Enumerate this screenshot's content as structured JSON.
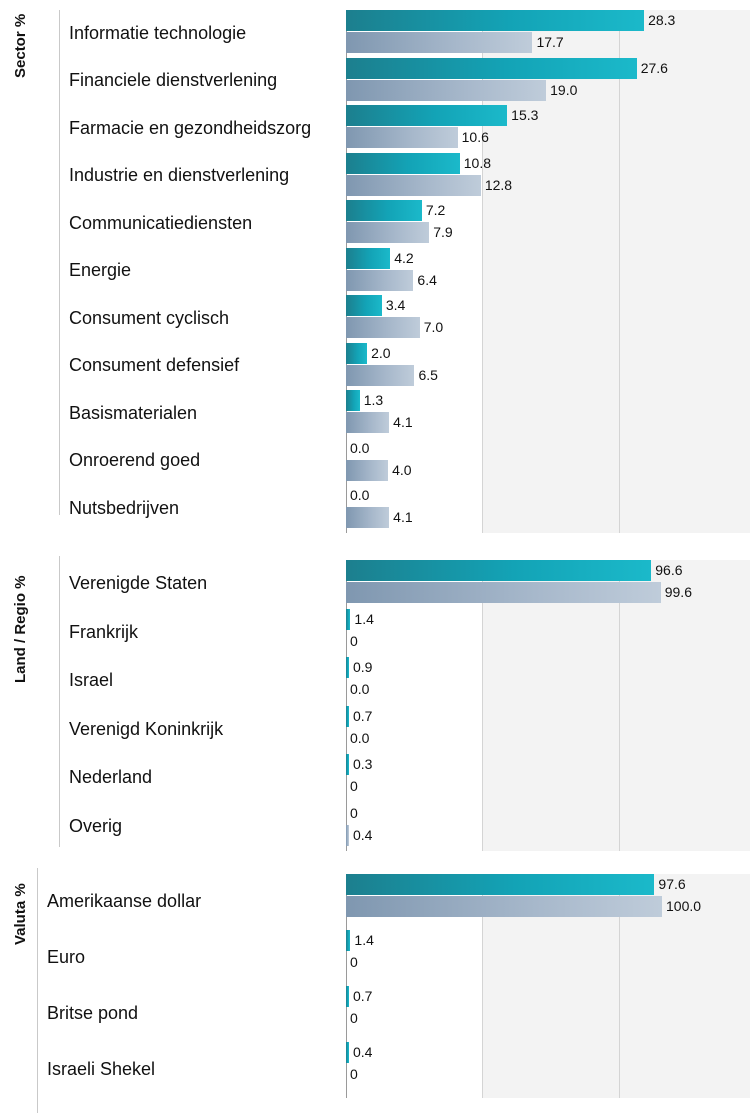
{
  "chart_data": [
    {
      "type": "bar",
      "orientation": "horizontal",
      "title": "Sector %",
      "categories": [
        "Informatie technologie",
        "Financiele dienstverlening",
        "Farmacie en gezondheidszorg",
        "Industrie en dienstverlening",
        "Communicatiediensten",
        "Energie",
        "Consument cyclisch",
        "Consument defensief",
        "Basismaterialen",
        "Onroerend goed",
        "Nutsbedrijven"
      ],
      "series": [
        {
          "values": [
            28.3,
            27.6,
            15.3,
            10.8,
            7.2,
            4.2,
            3.4,
            2.0,
            1.3,
            0.0,
            0.0
          ],
          "labels": [
            "28.3",
            "27.6",
            "15.3",
            "10.8",
            "7.2",
            "4.2",
            "3.4",
            "2.0",
            "1.3",
            "0.0",
            "0.0"
          ],
          "color": "#13a3b6"
        },
        {
          "values": [
            17.7,
            19.0,
            10.6,
            12.8,
            7.9,
            6.4,
            7.0,
            6.5,
            4.1,
            4.0,
            4.1
          ],
          "labels": [
            "17.7",
            "19.0",
            "10.6",
            "12.8",
            "7.9",
            "6.4",
            "7.0",
            "6.5",
            "4.1",
            "4.0",
            "4.1"
          ],
          "color": "#a7b8cb"
        }
      ],
      "xlim": [
        0,
        30
      ]
    },
    {
      "type": "bar",
      "orientation": "horizontal",
      "title": "Land / Regio %",
      "categories": [
        "Verenigde Staten",
        "Frankrijk",
        "Israel",
        "Verenigd Koninkrijk",
        "Nederland",
        "Overig"
      ],
      "series": [
        {
          "values": [
            96.6,
            1.4,
            0.9,
            0.7,
            0.3,
            0
          ],
          "labels": [
            "96.6",
            "1.4",
            "0.9",
            "0.7",
            "0.3",
            "0"
          ],
          "color": "#13a3b6"
        },
        {
          "values": [
            99.6,
            0,
            0.0,
            0.0,
            0,
            0.4
          ],
          "labels": [
            "99.6",
            "0",
            "0.0",
            "0.0",
            "0",
            "0.4"
          ],
          "color": "#a7b8cb"
        }
      ],
      "xlim": [
        0,
        100
      ]
    },
    {
      "type": "bar",
      "orientation": "horizontal",
      "title": "Valuta %",
      "categories": [
        "Amerikaanse dollar",
        "Euro",
        "Britse pond",
        "Israeli Shekel"
      ],
      "series": [
        {
          "values": [
            97.6,
            1.4,
            0.7,
            0.4
          ],
          "labels": [
            "97.6",
            "1.4",
            "0.7",
            "0.4"
          ],
          "color": "#13a3b6"
        },
        {
          "values": [
            100.0,
            0,
            0,
            0
          ],
          "labels": [
            "100.0",
            "0",
            "0",
            "0"
          ],
          "color": "#a7b8cb"
        }
      ],
      "xlim": [
        0,
        100
      ]
    }
  ]
}
